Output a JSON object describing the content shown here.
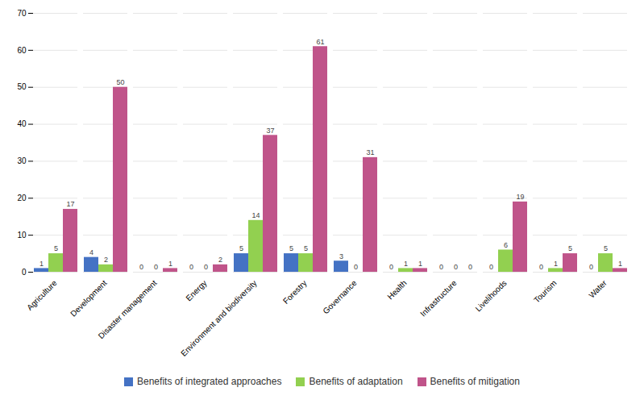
{
  "chart_data": {
    "type": "bar",
    "categories": [
      "Agriculture",
      "Development",
      "Disaster management",
      "Energy",
      "Environment and biodiversity",
      "Forestry",
      "Governance",
      "Health",
      "Infrastructure",
      "Livelihoods",
      "Tourism",
      "Water"
    ],
    "series": [
      {
        "name": "Benefits of integrated approaches",
        "color": "#4472c4",
        "values": [
          1,
          4,
          0,
          0,
          5,
          5,
          3,
          0,
          0,
          0,
          0,
          0
        ]
      },
      {
        "name": "Benefits of adaptation",
        "color": "#92d050",
        "values": [
          5,
          2,
          0,
          0,
          14,
          5,
          0,
          1,
          0,
          6,
          1,
          5
        ]
      },
      {
        "name": "Benefits of mitigation",
        "color": "#c0548a",
        "values": [
          17,
          50,
          1,
          2,
          37,
          61,
          31,
          1,
          0,
          19,
          5,
          1
        ]
      }
    ],
    "ylim": [
      0,
      70
    ],
    "yticks": [
      0,
      10,
      20,
      30,
      40,
      50,
      60,
      70
    ],
    "grid": true,
    "data_labels": true,
    "legend": "bottom"
  }
}
